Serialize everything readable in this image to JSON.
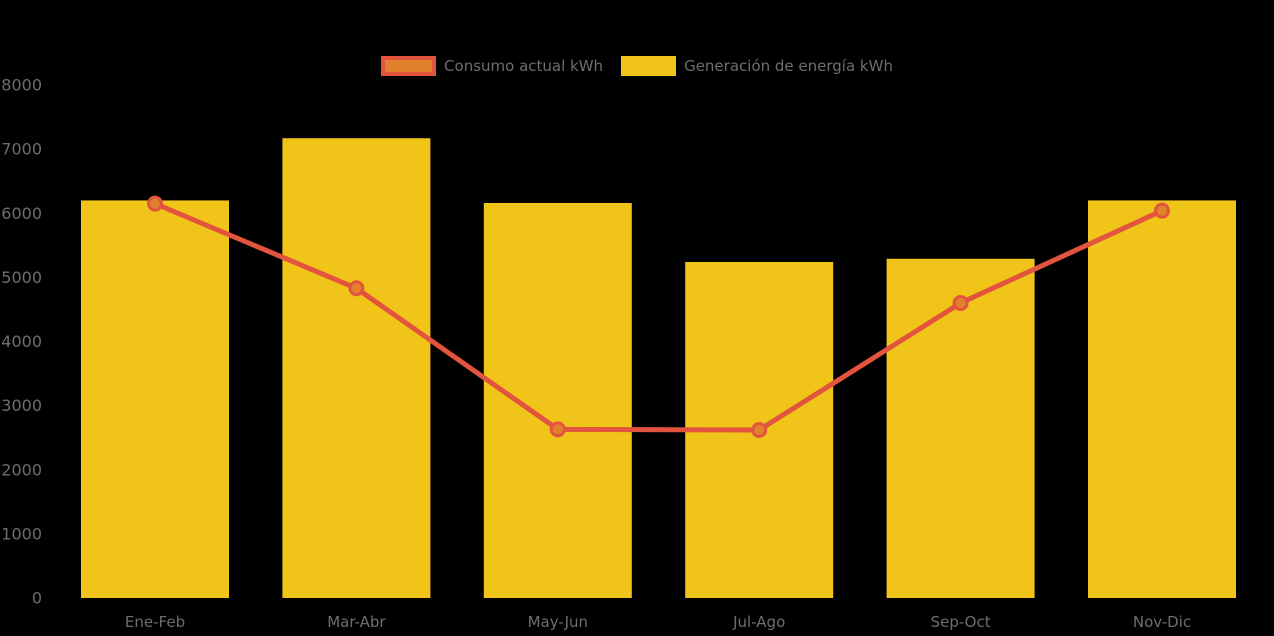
{
  "legend": {
    "items": [
      {
        "label": "Consumo actual kWh",
        "swatch_fill": "#e1812b",
        "swatch_border": "#e2543e"
      },
      {
        "label": "Generación de energía kWh",
        "swatch_fill": "#f0c419",
        "swatch_border": "#f0c419"
      }
    ]
  },
  "colors": {
    "background": "#000000",
    "bar": "#f0c419",
    "line": "#e2543e",
    "marker_fill": "#e1812b",
    "axis_text": "#6e6e6e"
  },
  "chart_data": {
    "type": "combo",
    "title": "",
    "xlabel": "",
    "ylabel": "",
    "categories": [
      "Ene-Feb",
      "Mar-Abr",
      "May-Jun",
      "Jul-Ago",
      "Sep-Oct",
      "Nov-Dic"
    ],
    "series": [
      {
        "name": "Consumo actual kWh",
        "type": "line",
        "color": "#e2543e",
        "marker_color": "#e1812b",
        "values": [
          6150,
          4830,
          2630,
          2620,
          4600,
          6040
        ]
      },
      {
        "name": "Generación de energía kWh",
        "type": "bar",
        "color": "#f0c419",
        "values": [
          6200,
          7170,
          6160,
          5240,
          5290,
          6200
        ]
      }
    ],
    "ylim": [
      0,
      8000
    ],
    "yticks": [
      0,
      1000,
      2000,
      3000,
      4000,
      5000,
      6000,
      7000,
      8000
    ],
    "grid": false,
    "legend_position": "top"
  }
}
